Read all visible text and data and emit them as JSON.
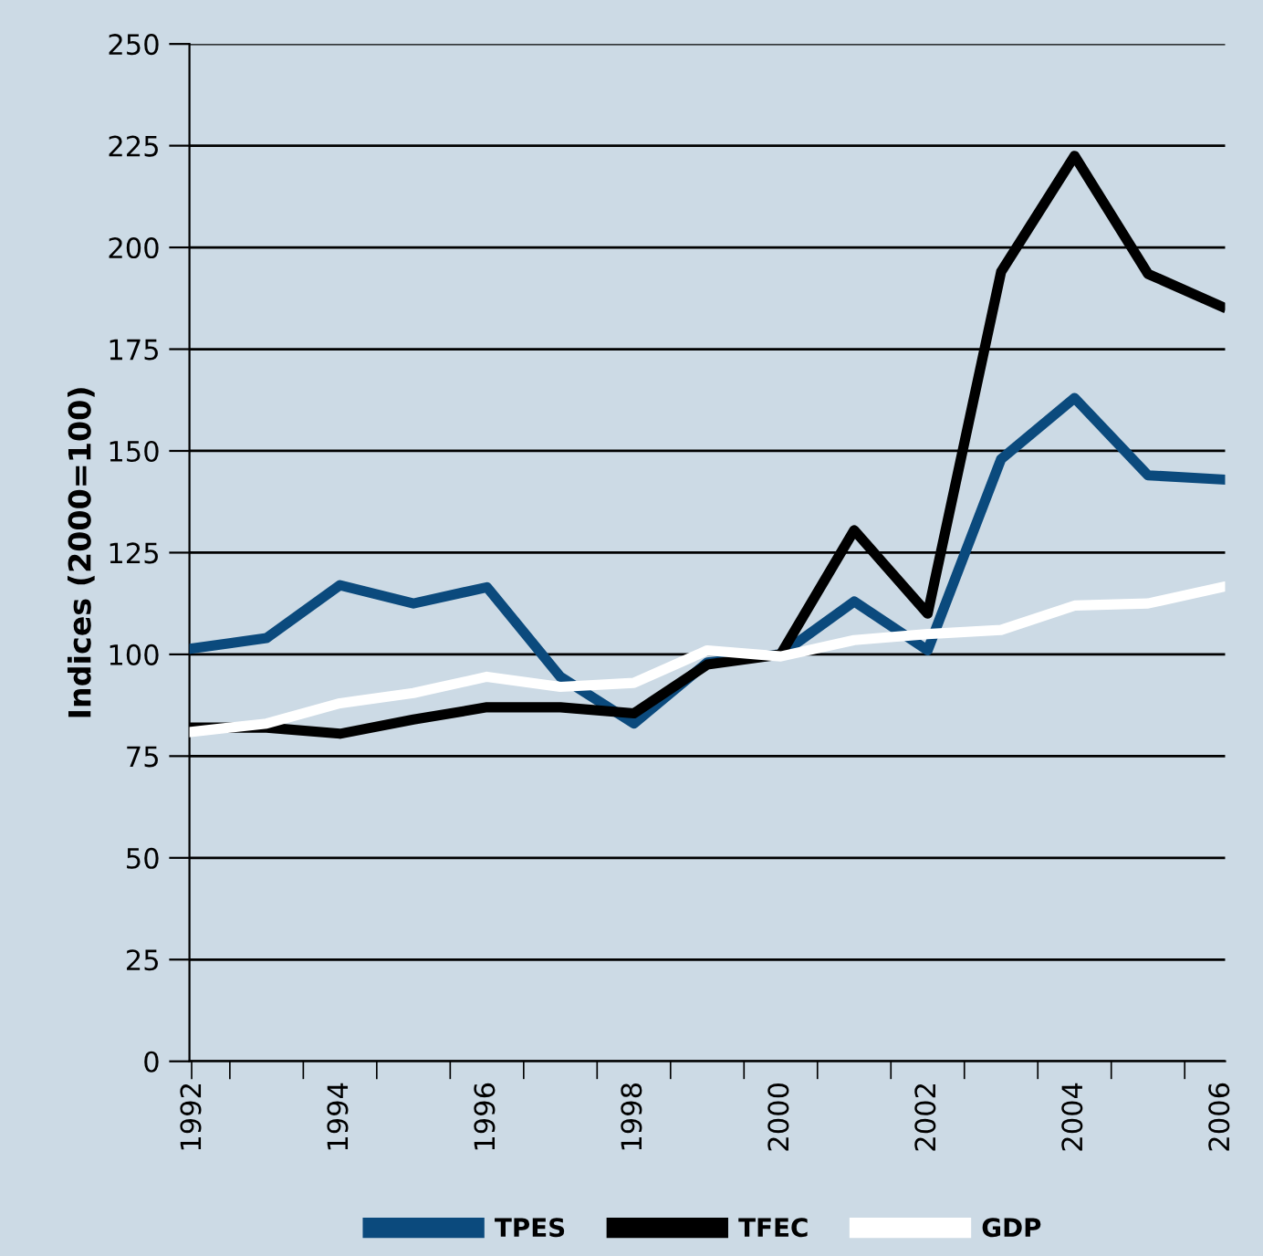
{
  "chart_data": {
    "type": "line",
    "ylabel": "Indices (2000=100)",
    "categories": [
      "1992",
      null,
      "1994",
      null,
      "1996",
      null,
      "1998",
      null,
      "2000",
      null,
      "2002",
      null,
      "2004",
      null,
      "2006"
    ],
    "series": [
      {
        "name": "TPES",
        "color": "#0b4a7d",
        "values": [
          101.5,
          104,
          117,
          112.5,
          116.5,
          94.5,
          83,
          98,
          100,
          113,
          101,
          148,
          163,
          144,
          143
        ]
      },
      {
        "name": "TFEC",
        "color": "#000000",
        "values": [
          82,
          82,
          80.5,
          84,
          87,
          87,
          85.5,
          97.5,
          100,
          130.5,
          110,
          194,
          222.5,
          193.5,
          185.5
        ]
      },
      {
        "name": "GDP",
        "color": "#ffffff",
        "values": [
          81,
          83,
          88,
          90.5,
          94.5,
          92,
          93,
          101,
          99.5,
          103.5,
          105,
          106,
          112,
          112.5,
          116.5
        ]
      }
    ],
    "ylim": [
      0,
      250
    ],
    "yticks": [
      0,
      25,
      50,
      75,
      100,
      125,
      150,
      175,
      200,
      225,
      250
    ],
    "grid": "y",
    "legend": "bottom",
    "line_style": "solid",
    "marker": "none"
  }
}
